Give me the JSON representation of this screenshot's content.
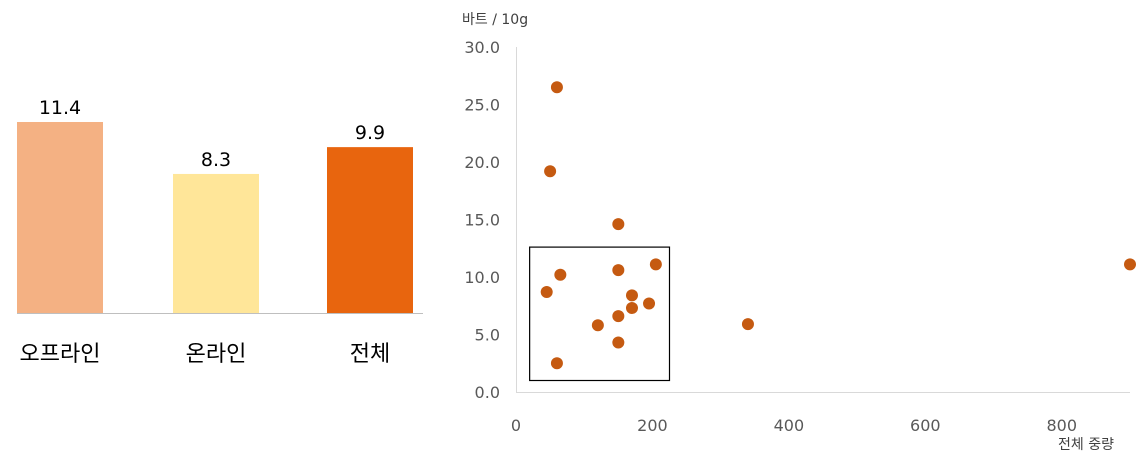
{
  "chart_data": [
    {
      "type": "bar",
      "categories": [
        "오프라인",
        "온라인",
        "전체"
      ],
      "values": [
        11.4,
        8.3,
        9.9
      ],
      "value_labels": [
        "11.4",
        "8.3",
        "9.9"
      ],
      "colors": [
        "#F4B183",
        "#FFE699",
        "#E8650E"
      ],
      "title": "",
      "xlabel": "",
      "ylabel": "",
      "ylim": [
        0,
        13.5
      ]
    },
    {
      "type": "scatter",
      "ylabel": "바트 / 10g",
      "xlabel": "전체 중량",
      "xlim": [
        0,
        900
      ],
      "ylim": [
        0,
        30
      ],
      "x_ticks": [
        "0",
        "200",
        "400",
        "600",
        "800"
      ],
      "x_tick_values": [
        0,
        200,
        400,
        600,
        800
      ],
      "y_ticks": [
        "0.0",
        "5.0",
        "10.0",
        "15.0",
        "20.0",
        "25.0",
        "30.0"
      ],
      "y_tick_values": [
        0,
        5,
        10,
        15,
        20,
        25,
        30
      ],
      "marker_color": "#C55A11",
      "series": [
        {
          "x": [
            60,
            50,
            150,
            205,
            150,
            65,
            45,
            170,
            195,
            170,
            150,
            120,
            150,
            60,
            340,
            900
          ],
          "y": [
            26.5,
            19.2,
            14.6,
            11.1,
            10.6,
            10.2,
            8.7,
            8.4,
            7.7,
            7.3,
            6.6,
            5.8,
            4.3,
            2.5,
            5.9,
            11.1
          ]
        }
      ],
      "highlight_box": {
        "x0": 20,
        "x1": 225,
        "y0": 1.0,
        "y1": 12.6
      }
    }
  ]
}
